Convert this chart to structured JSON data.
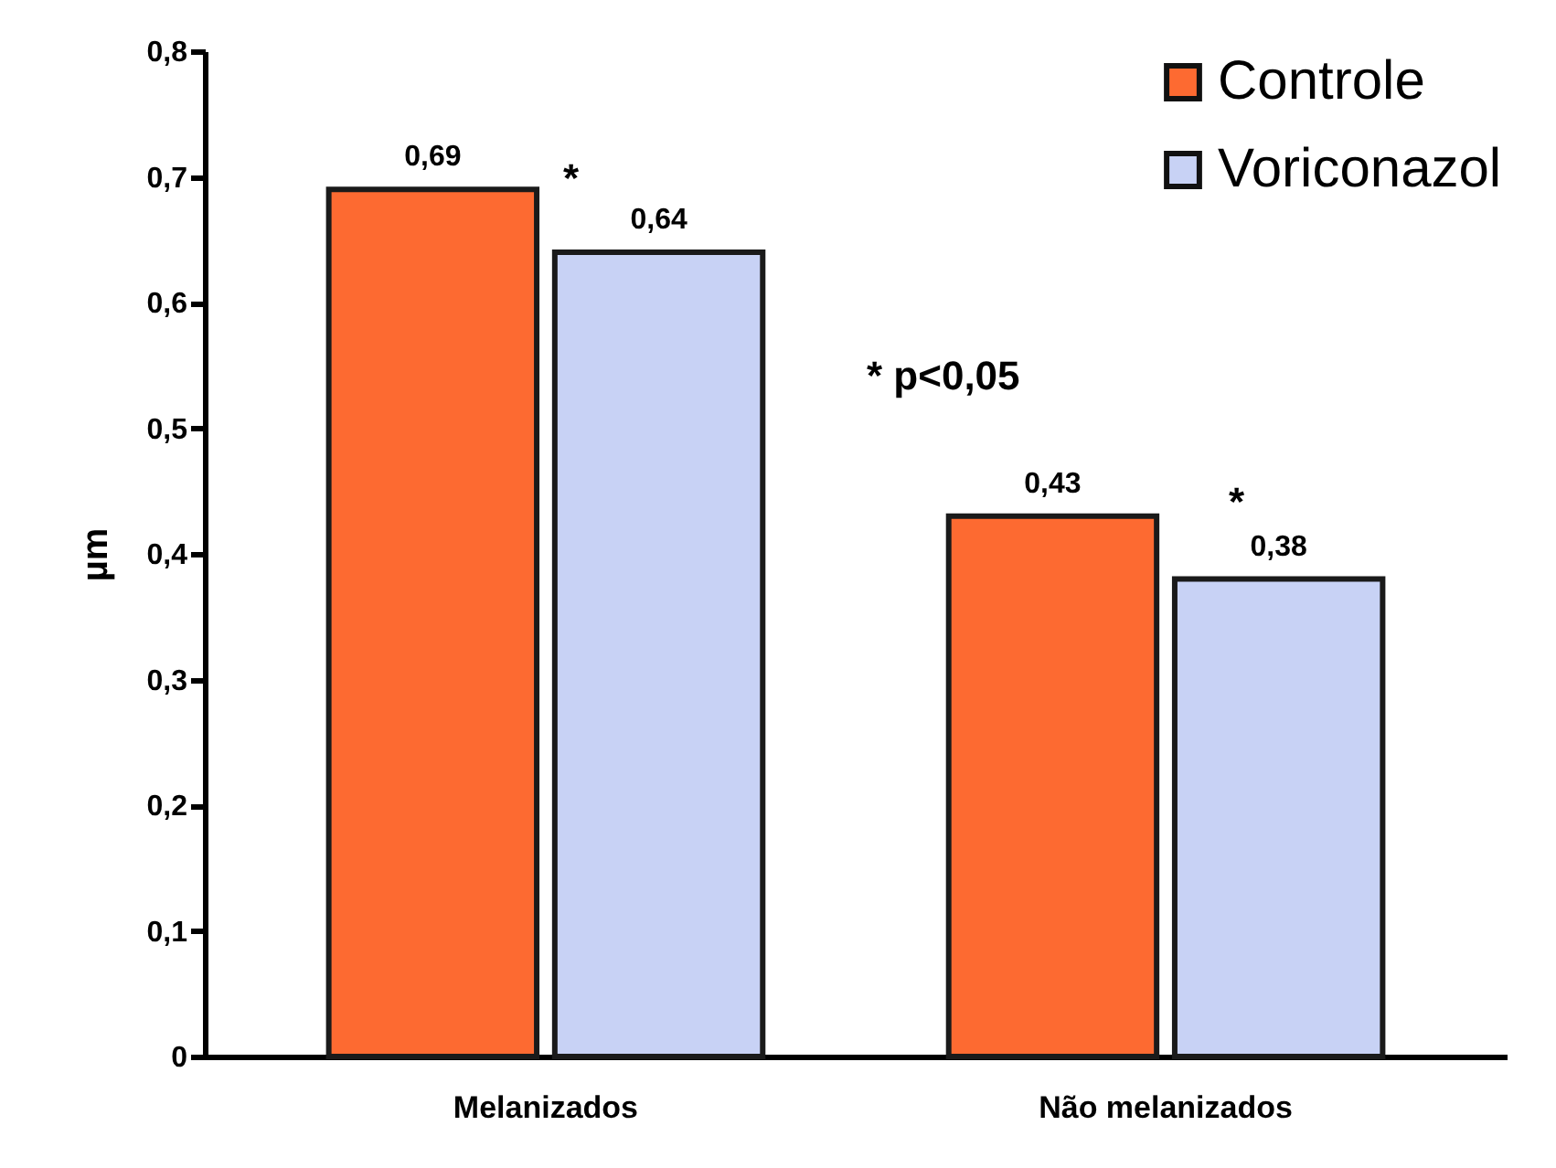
{
  "chart_data": {
    "type": "bar",
    "ylabel": "µm",
    "categories": [
      "Melanizados",
      "Não melanizados"
    ],
    "series": [
      {
        "name": "Controle",
        "color": "#fd6a31",
        "values": [
          0.69,
          0.43
        ],
        "value_labels": [
          "0,69",
          "0,43"
        ]
      },
      {
        "name": "Voriconazol",
        "color": "#c8d2f5",
        "values": [
          0.64,
          0.38
        ],
        "value_labels": [
          "0,64",
          "0,38"
        ]
      }
    ],
    "ylim": [
      0,
      0.8
    ],
    "yticks": [
      {
        "value": 0,
        "label": "0"
      },
      {
        "value": 0.1,
        "label": "0,1"
      },
      {
        "value": 0.2,
        "label": "0,2"
      },
      {
        "value": 0.3,
        "label": "0,3"
      },
      {
        "value": 0.4,
        "label": "0,4"
      },
      {
        "value": 0.5,
        "label": "0,5"
      },
      {
        "value": 0.6,
        "label": "0,6"
      },
      {
        "value": 0.7,
        "label": "0,7"
      },
      {
        "value": 0.8,
        "label": "0,8"
      }
    ],
    "annotations": [
      "*",
      "*",
      "* p<0,05"
    ],
    "legend": "top right",
    "grid": false
  }
}
